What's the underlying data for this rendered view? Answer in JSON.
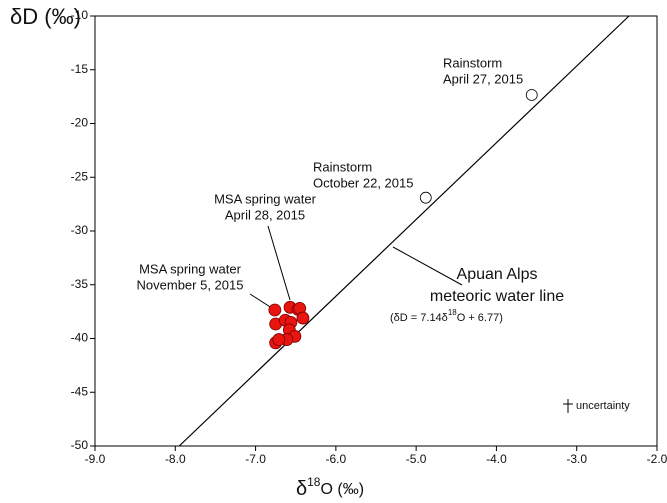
{
  "chart_data": {
    "type": "scatter",
    "x_label": {
      "main": "δ",
      "sup": "18",
      "rest": "O (‰)"
    },
    "y_label": "δD (‰)",
    "xlim": [
      -9,
      -2
    ],
    "xticks": [
      {
        "value": -9,
        "label": "-9.0"
      },
      {
        "value": -8,
        "label": "-8.0"
      },
      {
        "value": -7,
        "label": "-7.0"
      },
      {
        "value": -6,
        "label": "-6.0"
      },
      {
        "value": -5,
        "label": "-5.0"
      },
      {
        "value": -4,
        "label": "-4.0"
      },
      {
        "value": -3,
        "label": "-3.0"
      },
      {
        "value": -2,
        "label": "-2.0"
      }
    ],
    "ylim": [
      -50,
      -10
    ],
    "yticks": [
      -50,
      -45,
      -40,
      -35,
      -30,
      -25,
      -20,
      -15,
      -10
    ],
    "series": [
      {
        "color": "#ffffff",
        "x": [
          -3.56,
          -4.88
        ],
        "values": [
          -17.35,
          -26.9
        ]
      },
      {
        "color": "#e8140f",
        "x": [
          -6.76,
          -6.57,
          -6.47,
          -6.45,
          -6.41,
          -6.75,
          -6.63,
          -6.56,
          -6.58,
          -6.51,
          -6.61,
          -6.75,
          -6.71
        ],
        "values": [
          -37.35,
          -37.1,
          -37.3,
          -37.2,
          -38.1,
          -38.65,
          -38.3,
          -38.5,
          -39.2,
          -39.8,
          -40.1,
          -40.4,
          -40.1
        ]
      }
    ],
    "line": {
      "slope": 7.14,
      "intercept": 6.77
    },
    "annotations": [
      {
        "lines": [
          "Rainstorm",
          "April 27, 2015"
        ]
      },
      {
        "lines": [
          "Rainstorm",
          "October 22, 2015"
        ]
      },
      {
        "lines": [
          "MSA spring water",
          "April 28, 2015"
        ]
      },
      {
        "lines": [
          "MSA spring water",
          "November 5, 2015"
        ]
      },
      {
        "lines": [
          "Apuan Alps",
          "meteoric water line"
        ]
      }
    ],
    "equation": {
      "a": "(δD = 7.14δ",
      "sup": "18",
      "b": "O + 6.77)"
    },
    "uncertainty_label": "uncertainty"
  }
}
